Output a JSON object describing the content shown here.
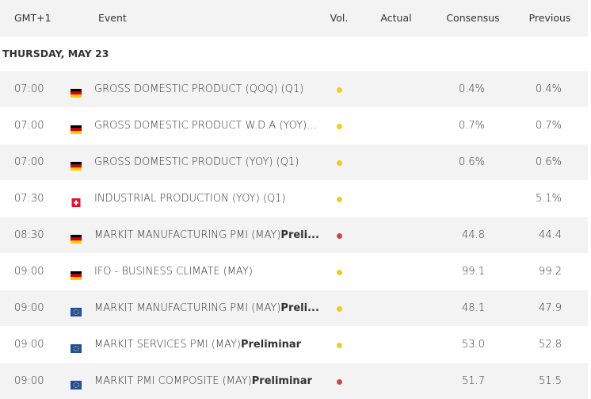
{
  "header": {
    "columns": [
      "GMT+1",
      "Event",
      "Vol.",
      "Actual",
      "Consensus",
      "Previous"
    ]
  },
  "date": "THURSDAY, MAY 23",
  "rows": [
    {
      "time": "07:00",
      "flag": "de",
      "event": "GROSS DOMESTIC PRODUCT (QOQ) (Q1)",
      "volatility": "#f0cf1c",
      "consensus": "0.4%",
      "previous": "0.4%"
    },
    {
      "time": "07:00",
      "flag": "de",
      "event": "GROSS DOMESTIC PRODUCT W.D.A (YOY)...",
      "volatility": "#f0cf1c",
      "consensus": "0.7%",
      "previous": "0.7%"
    },
    {
      "time": "07:00",
      "flag": "de",
      "event": "GROSS DOMESTIC PRODUCT (YOY) (Q1)",
      "volatility": "#f0cf1c",
      "consensus": "0.6%",
      "previous": "0.6%"
    },
    {
      "time": "07:30",
      "flag": "ch",
      "event": "INDUSTRIAL PRODUCTION (YOY) (Q1)",
      "volatility": "#f0cf1c",
      "previous": "5.1%"
    },
    {
      "time": "08:30",
      "flag": "de",
      "event": "MARKIT MANUFACTURING PMI (MAY)",
      "event_suffix": "Preli...",
      "volatility": "#c9494f",
      "consensus": "44.8",
      "previous": "44.4"
    },
    {
      "time": "09:00",
      "flag": "de",
      "event": "IFO - BUSINESS CLIMATE (MAY)",
      "volatility": "#f0cf1c",
      "consensus": "99.1",
      "previous": "99.2"
    },
    {
      "time": "09:00",
      "flag": "eu",
      "event": "MARKIT MANUFACTURING PMI (MAY)",
      "event_suffix": "Preli...",
      "volatility": "#f0cf1c",
      "consensus": "48.1",
      "previous": "47.9"
    },
    {
      "time": "09:00",
      "flag": "eu",
      "event": "MARKIT SERVICES PMI (MAY)",
      "event_suffix": "Preliminar",
      "volatility": "#f0cf1c",
      "consensus": "53.0",
      "previous": "52.8"
    },
    {
      "time": "09:00",
      "flag": "eu",
      "event": "MARKIT PMI COMPOSITE (MAY)",
      "event_suffix": "Preliminar",
      "volatility": "#c9494f",
      "consensus": "51.7",
      "previous": "51.5"
    }
  ]
}
